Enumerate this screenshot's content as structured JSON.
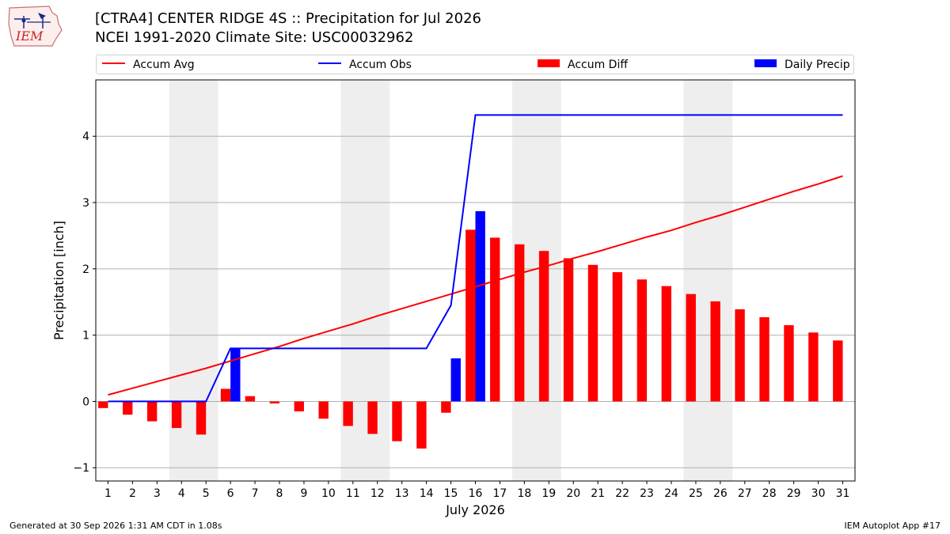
{
  "header": {
    "title_line1": "[CTRA4] CENTER RIDGE 4S :: Precipitation for Jul 2026",
    "title_line2": "NCEI 1991-2020 Climate Site: USC00032962",
    "logo_text": "IEM"
  },
  "footer": {
    "generated": "Generated at 30 Sep 2026 1:31 AM CDT in 1.08s",
    "app": "IEM Autoplot App #17"
  },
  "colors": {
    "accum_avg": "#ff0000",
    "accum_obs": "#0000ff",
    "accum_diff": "#ff0000",
    "daily_precip": "#0000ff",
    "weekend_shade": "#eeeeee",
    "grid": "#b0b0b0"
  },
  "chart_data": {
    "type": "bar",
    "xlabel": "July 2026",
    "ylabel": "Precipitation [inch]",
    "x": [
      1,
      2,
      3,
      4,
      5,
      6,
      7,
      8,
      9,
      10,
      11,
      12,
      13,
      14,
      15,
      16,
      17,
      18,
      19,
      20,
      21,
      22,
      23,
      24,
      25,
      26,
      27,
      28,
      29,
      30,
      31
    ],
    "x_ticks": [
      "1",
      "2",
      "3",
      "4",
      "5",
      "6",
      "7",
      "8",
      "9",
      "10",
      "11",
      "12",
      "13",
      "14",
      "15",
      "16",
      "17",
      "18",
      "19",
      "20",
      "21",
      "22",
      "23",
      "24",
      "25",
      "26",
      "27",
      "28",
      "29",
      "30",
      "31"
    ],
    "ylim": [
      -1.2,
      4.85
    ],
    "y_ticks": [
      -1,
      0,
      1,
      2,
      3,
      4
    ],
    "y_tick_labels": [
      "−1",
      "0",
      "1",
      "2",
      "3",
      "4"
    ],
    "grid": "horizontal",
    "legend_position": "top",
    "shaded_days": [
      [
        3.5,
        5.5
      ],
      [
        10.5,
        12.5
      ],
      [
        17.5,
        19.5
      ],
      [
        24.5,
        26.5
      ]
    ],
    "series": [
      {
        "name": "Accum Avg",
        "kind": "line",
        "values": [
          0.1,
          0.2,
          0.3,
          0.4,
          0.5,
          0.61,
          0.72,
          0.83,
          0.95,
          1.06,
          1.17,
          1.29,
          1.4,
          1.51,
          1.62,
          1.73,
          1.84,
          1.95,
          2.05,
          2.16,
          2.26,
          2.37,
          2.48,
          2.58,
          2.7,
          2.81,
          2.93,
          3.05,
          3.17,
          3.28,
          3.4
        ]
      },
      {
        "name": "Accum Obs",
        "kind": "line",
        "values": [
          0,
          0,
          0,
          0,
          0,
          0.8,
          0.8,
          0.8,
          0.8,
          0.8,
          0.8,
          0.8,
          0.8,
          0.8,
          1.45,
          4.32,
          4.32,
          4.32,
          4.32,
          4.32,
          4.32,
          4.32,
          4.32,
          4.32,
          4.32,
          4.32,
          4.32,
          4.32,
          4.32,
          4.32,
          4.32
        ]
      },
      {
        "name": "Accum Diff",
        "kind": "bar",
        "values": [
          -0.1,
          -0.2,
          -0.3,
          -0.4,
          -0.5,
          0.19,
          0.08,
          -0.03,
          -0.15,
          -0.26,
          -0.37,
          -0.49,
          -0.6,
          -0.71,
          -0.17,
          2.59,
          2.47,
          2.37,
          2.27,
          2.16,
          2.06,
          1.95,
          1.84,
          1.74,
          1.62,
          1.51,
          1.39,
          1.27,
          1.15,
          1.04,
          0.92
        ]
      },
      {
        "name": "Daily Precip",
        "kind": "bar",
        "values": [
          0,
          0,
          0,
          0,
          0,
          0.8,
          0,
          0,
          0,
          0,
          0,
          0,
          0,
          0,
          0.65,
          2.87,
          0,
          0,
          0,
          0,
          0,
          0,
          0,
          0,
          0,
          0,
          0,
          0,
          0,
          0,
          0
        ]
      }
    ]
  }
}
